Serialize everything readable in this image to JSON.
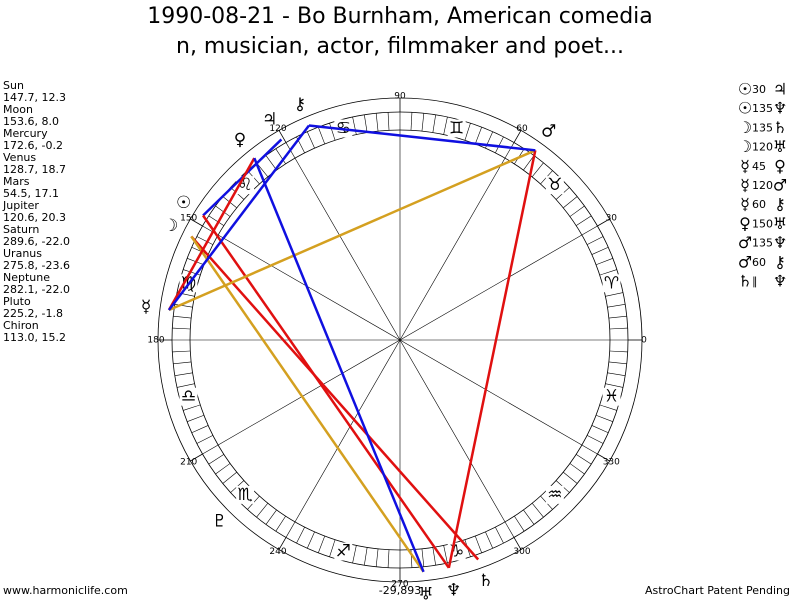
{
  "title_lines": [
    "1990-08-21 - Bo Burnham, American comedia",
    "n, musician, actor, filmmaker and poet..."
  ],
  "planets": [
    {
      "name": "Sun",
      "glyph": "☉",
      "position": "147.7, 12.3"
    },
    {
      "name": "Moon",
      "glyph": "☽",
      "position": "153.6, 8.0"
    },
    {
      "name": "Mercury",
      "glyph": "☿",
      "position": "172.6, -0.2"
    },
    {
      "name": "Venus",
      "glyph": "♀",
      "position": "128.7, 18.7"
    },
    {
      "name": "Mars",
      "glyph": "♂",
      "position": "54.5, 17.1"
    },
    {
      "name": "Jupiter",
      "glyph": "♃",
      "position": "120.6, 20.3"
    },
    {
      "name": "Saturn",
      "glyph": "♄",
      "position": "289.6, -22.0"
    },
    {
      "name": "Uranus",
      "glyph": "♅",
      "position": "275.8, -23.6"
    },
    {
      "name": "Neptune",
      "glyph": "♆",
      "position": "282.1, -22.0"
    },
    {
      "name": "Pluto",
      "glyph": "♇",
      "position": "225.2, -1.8"
    },
    {
      "name": "Chiron",
      "glyph": "⚷",
      "position": "113.0, 15.2"
    }
  ],
  "degree_labels": [
    0,
    30,
    60,
    90,
    120,
    150,
    180,
    210,
    240,
    270,
    300,
    330
  ],
  "signs": [
    "♈",
    "♉",
    "♊",
    "♋",
    "♌",
    "♍",
    "♎",
    "♏",
    "♐",
    "♑",
    "♒",
    "♓"
  ],
  "aspects": [
    {
      "from": "☉",
      "angle": 30,
      "to": "♃",
      "color": "#1010e0"
    },
    {
      "from": "☉",
      "angle": 135,
      "to": "♆",
      "color": "#e01010"
    },
    {
      "from": "☽",
      "angle": 135,
      "to": "♄",
      "color": "#e01010"
    },
    {
      "from": "☽",
      "angle": 120,
      "to": "♅",
      "color": "#d4a020"
    },
    {
      "from": "☿",
      "angle": 45,
      "to": "♀",
      "color": "#e01010"
    },
    {
      "from": "☿",
      "angle": 120,
      "to": "♂",
      "color": "#d4a020"
    },
    {
      "from": "☿",
      "angle": 60,
      "to": "⚷",
      "color": "#1010e0"
    },
    {
      "from": "♀",
      "angle": 150,
      "to": "♅",
      "color": "#1010e0"
    },
    {
      "from": "♂",
      "angle": 135,
      "to": "♆",
      "color": "#e01010"
    },
    {
      "from": "♂",
      "angle": 60,
      "to": "⚷",
      "color": "#1010e0"
    },
    {
      "from": "♄",
      "angle": "∥",
      "to": "♆",
      "color": "#e01010"
    }
  ],
  "footer": {
    "website": "www.harmoniclife.com",
    "center": "-29,893",
    "right": "AstroChart Patent Pending"
  }
}
